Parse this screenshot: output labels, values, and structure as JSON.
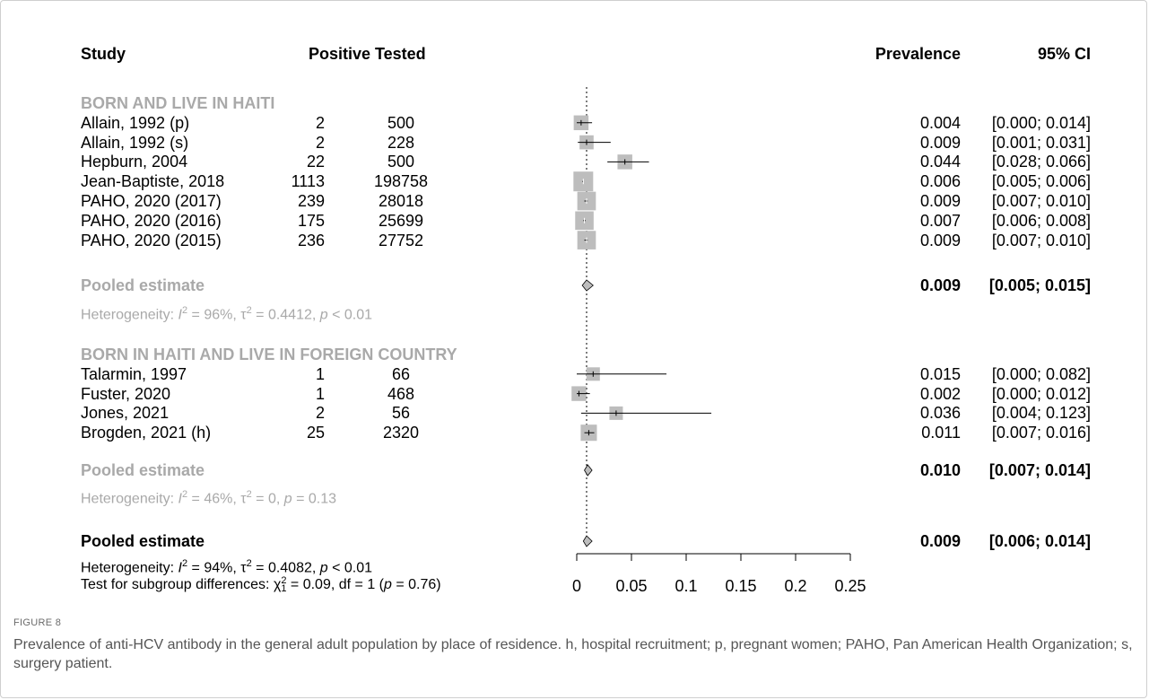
{
  "chart_data": {
    "type": "forest",
    "headers": {
      "study": "Study",
      "positive": "Positive",
      "tested": "Tested",
      "prevalence": "Prevalence",
      "ci": "95% CI"
    },
    "groups": [
      {
        "name": "BORN AND LIVE IN HAITI",
        "studies": [
          {
            "study": "Allain, 1992 (p)",
            "positive": "2",
            "tested": "500",
            "prevalence": 0.004,
            "ci_low": 0.0,
            "ci_high": 0.014,
            "prev_text": "0.004",
            "ci_text": "[0.000; 0.014]"
          },
          {
            "study": "Allain, 1992 (s)",
            "positive": "2",
            "tested": "228",
            "prevalence": 0.009,
            "ci_low": 0.001,
            "ci_high": 0.031,
            "prev_text": "0.009",
            "ci_text": "[0.001; 0.031]"
          },
          {
            "study": "Hepburn, 2004",
            "positive": "22",
            "tested": "500",
            "prevalence": 0.044,
            "ci_low": 0.028,
            "ci_high": 0.066,
            "prev_text": "0.044",
            "ci_text": "[0.028; 0.066]"
          },
          {
            "study": "Jean-Baptiste, 2018",
            "positive": "1113",
            "tested": "198758",
            "prevalence": 0.006,
            "ci_low": 0.005,
            "ci_high": 0.006,
            "prev_text": "0.006",
            "ci_text": "[0.005; 0.006]"
          },
          {
            "study": "PAHO, 2020 (2017)",
            "positive": "239",
            "tested": "28018",
            "prevalence": 0.009,
            "ci_low": 0.007,
            "ci_high": 0.01,
            "prev_text": "0.009",
            "ci_text": "[0.007; 0.010]"
          },
          {
            "study": "PAHO, 2020 (2016)",
            "positive": "175",
            "tested": "25699",
            "prevalence": 0.007,
            "ci_low": 0.006,
            "ci_high": 0.008,
            "prev_text": "0.007",
            "ci_text": "[0.006; 0.008]"
          },
          {
            "study": "PAHO, 2020 (2015)",
            "positive": "236",
            "tested": "27752",
            "prevalence": 0.009,
            "ci_low": 0.007,
            "ci_high": 0.01,
            "prev_text": "0.009",
            "ci_text": "[0.007; 0.010]"
          }
        ],
        "pooled": {
          "label": "Pooled estimate",
          "prevalence": 0.009,
          "ci_low": 0.005,
          "ci_high": 0.015,
          "prev_text": "0.009",
          "ci_text": "[0.005; 0.015]"
        },
        "heterogeneity": {
          "prefix": "Heterogeneity: ",
          "i2_sym": "I",
          "i2_value": " = 96%, ",
          "tau_sym": "τ",
          "tau_value": " = 0.4412, ",
          "p_sym": "p",
          "p_value": " < 0.01"
        }
      },
      {
        "name": "BORN IN HAITI AND LIVE IN FOREIGN COUNTRY",
        "studies": [
          {
            "study": "Talarmin, 1997",
            "positive": "1",
            "tested": "66",
            "prevalence": 0.015,
            "ci_low": 0.0,
            "ci_high": 0.082,
            "prev_text": "0.015",
            "ci_text": "[0.000; 0.082]"
          },
          {
            "study": "Fuster, 2020",
            "positive": "1",
            "tested": "468",
            "prevalence": 0.002,
            "ci_low": 0.0,
            "ci_high": 0.012,
            "prev_text": "0.002",
            "ci_text": "[0.000; 0.012]"
          },
          {
            "study": "Jones, 2021",
            "positive": "2",
            "tested": "56",
            "prevalence": 0.036,
            "ci_low": 0.004,
            "ci_high": 0.123,
            "prev_text": "0.036",
            "ci_text": "[0.004; 0.123]"
          },
          {
            "study": "Brogden, 2021 (h)",
            "positive": "25",
            "tested": "2320",
            "prevalence": 0.011,
            "ci_low": 0.007,
            "ci_high": 0.016,
            "prev_text": "0.011",
            "ci_text": "[0.007; 0.016]"
          }
        ],
        "pooled": {
          "label": "Pooled estimate",
          "prevalence": 0.01,
          "ci_low": 0.007,
          "ci_high": 0.014,
          "prev_text": "0.010",
          "ci_text": "[0.007; 0.014]"
        },
        "heterogeneity": {
          "prefix": "Heterogeneity: ",
          "i2_sym": "I",
          "i2_value": " = 46%, ",
          "tau_sym": "τ",
          "tau_value": " = 0, ",
          "p_sym": "p",
          "p_value": " = 0.13"
        }
      }
    ],
    "overall": {
      "label": "Pooled estimate",
      "prevalence": 0.009,
      "ci_low": 0.006,
      "ci_high": 0.014,
      "prev_text": "0.009",
      "ci_text": "[0.006; 0.014]",
      "heterogeneity": {
        "prefix": "Heterogeneity: ",
        "i2_sym": "I",
        "i2_value": " = 94%, ",
        "tau_sym": "τ",
        "tau_value": " = 0.4082, ",
        "p_sym": "p",
        "p_value": " < 0.01"
      },
      "subgroup_test": {
        "prefix": "Test for subgroup differences: ",
        "chi_sym": "χ",
        "chi_sub": "1",
        "chi_value": " = 0.09, df = 1 (",
        "p_sym": "p",
        "p_value": " = 0.76)"
      }
    },
    "xaxis": {
      "ticks": [
        0,
        0.05,
        0.1,
        0.15,
        0.2,
        0.25
      ],
      "tick_labels": [
        "0",
        "0.05",
        "0.1",
        "0.15",
        "0.2",
        "0.25"
      ],
      "range": [
        0,
        0.25
      ],
      "reference_line": 0.009,
      "reference_style": "dotted"
    },
    "colors": {
      "box": "#bdbdbd",
      "diamond": "#bdbdbd",
      "group_text": "#a9a9a9",
      "text": "#000000"
    }
  },
  "figure": {
    "label": "FIGURE 8",
    "caption": "Prevalence of anti-HCV antibody in the general adult population by place of residence. h, hospital recruitment; p, pregnant women; PAHO, Pan American Health Organization; s, surgery patient."
  }
}
